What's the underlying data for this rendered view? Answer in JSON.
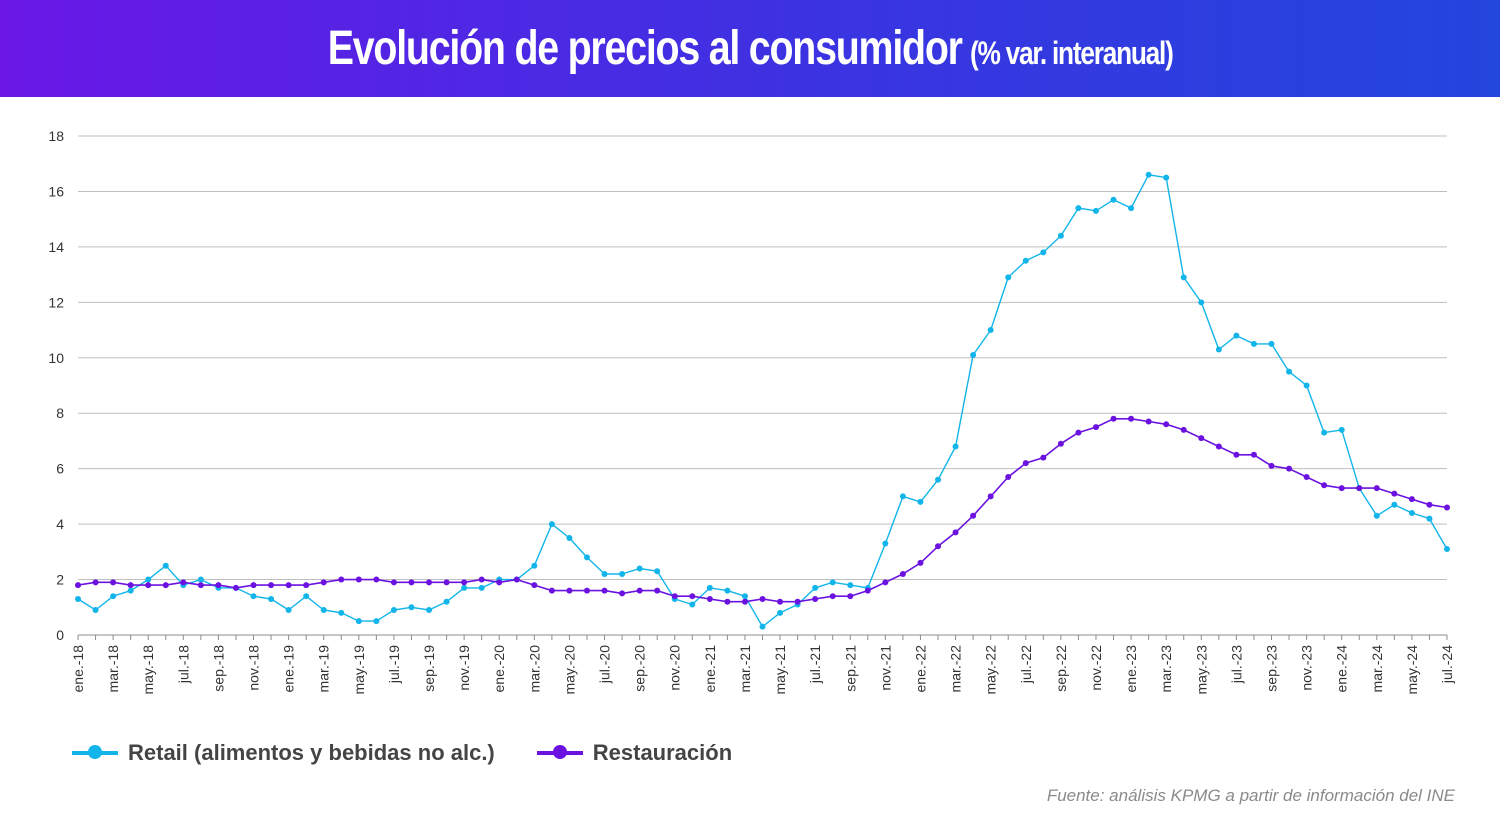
{
  "header": {
    "title": "Evolución de precios al consumidor",
    "subtitle": "(% var. interanual)"
  },
  "source": "Fuente: análisis KPMG a partir de información del INE",
  "colors": {
    "retail": "#12b5ea",
    "restauracion": "#6b12e0",
    "grid": "#bfbfbf"
  },
  "chart_data": {
    "type": "line",
    "title": "Evolución de precios al consumidor (% var. interanual)",
    "ylim": [
      0,
      18
    ],
    "yticks": [
      0,
      2,
      4,
      6,
      8,
      10,
      12,
      14,
      16,
      18
    ],
    "grid": true,
    "legend_position": "bottom-left",
    "x_tick_labels": [
      "ene.-18",
      "mar.-18",
      "may.-18",
      "jul.-18",
      "sep.-18",
      "nov.-18",
      "ene.-19",
      "mar.-19",
      "may.-19",
      "jul.-19",
      "sep.-19",
      "nov.-19",
      "ene.-20",
      "mar.-20",
      "may.-20",
      "jul.-20",
      "sep.-20",
      "nov.-20",
      "ene.-21",
      "mar.-21",
      "may.-21",
      "jul.-21",
      "sep.-21",
      "nov.-21",
      "ene.-22",
      "mar.-22",
      "may.-22",
      "jul.-22",
      "sep.-22",
      "nov.-22",
      "ene.-23",
      "mar.-23",
      "may.-23",
      "jul.-23",
      "sep.-23",
      "nov.-23",
      "ene.-24",
      "mar.-24",
      "may.-24",
      "jul.-24"
    ],
    "x": [
      "2018-01",
      "2018-02",
      "2018-03",
      "2018-04",
      "2018-05",
      "2018-06",
      "2018-07",
      "2018-08",
      "2018-09",
      "2018-10",
      "2018-11",
      "2018-12",
      "2019-01",
      "2019-02",
      "2019-03",
      "2019-04",
      "2019-05",
      "2019-06",
      "2019-07",
      "2019-08",
      "2019-09",
      "2019-10",
      "2019-11",
      "2019-12",
      "2020-01",
      "2020-02",
      "2020-03",
      "2020-04",
      "2020-05",
      "2020-06",
      "2020-07",
      "2020-08",
      "2020-09",
      "2020-10",
      "2020-11",
      "2020-12",
      "2021-01",
      "2021-02",
      "2021-03",
      "2021-04",
      "2021-05",
      "2021-06",
      "2021-07",
      "2021-08",
      "2021-09",
      "2021-10",
      "2021-11",
      "2021-12",
      "2022-01",
      "2022-02",
      "2022-03",
      "2022-04",
      "2022-05",
      "2022-06",
      "2022-07",
      "2022-08",
      "2022-09",
      "2022-10",
      "2022-11",
      "2022-12",
      "2023-01",
      "2023-02",
      "2023-03",
      "2023-04",
      "2023-05",
      "2023-06",
      "2023-07",
      "2023-08",
      "2023-09",
      "2023-10",
      "2023-11",
      "2023-12",
      "2024-01",
      "2024-02",
      "2024-03",
      "2024-04",
      "2024-05",
      "2024-06",
      "2024-07"
    ],
    "series": [
      {
        "name": "Retail (alimentos y bebidas no alc.)",
        "color": "#12b5ea",
        "values": [
          1.3,
          0.9,
          1.4,
          1.6,
          2.0,
          2.5,
          1.8,
          2.0,
          1.7,
          1.7,
          1.4,
          1.3,
          0.9,
          1.4,
          0.9,
          0.8,
          0.5,
          0.5,
          0.9,
          1.0,
          0.9,
          1.2,
          1.7,
          1.7,
          2.0,
          2.0,
          2.5,
          4.0,
          3.5,
          2.8,
          2.2,
          2.2,
          2.4,
          2.3,
          1.3,
          1.1,
          1.7,
          1.6,
          1.4,
          0.3,
          0.8,
          1.1,
          1.7,
          1.9,
          1.8,
          1.7,
          3.3,
          5.0,
          4.8,
          5.6,
          6.8,
          10.1,
          11.0,
          12.9,
          13.5,
          13.8,
          14.4,
          15.4,
          15.3,
          15.7,
          15.4,
          16.6,
          16.5,
          12.9,
          12.0,
          10.3,
          10.8,
          10.5,
          10.5,
          9.5,
          9.0,
          7.3,
          7.4,
          5.3,
          4.3,
          4.7,
          4.4,
          4.2,
          3.1
        ]
      },
      {
        "name": "Restauración",
        "color": "#6b12e0",
        "values": [
          1.8,
          1.9,
          1.9,
          1.8,
          1.8,
          1.8,
          1.9,
          1.8,
          1.8,
          1.7,
          1.8,
          1.8,
          1.8,
          1.8,
          1.9,
          2.0,
          2.0,
          2.0,
          1.9,
          1.9,
          1.9,
          1.9,
          1.9,
          2.0,
          1.9,
          2.0,
          1.8,
          1.6,
          1.6,
          1.6,
          1.6,
          1.5,
          1.6,
          1.6,
          1.4,
          1.4,
          1.3,
          1.2,
          1.2,
          1.3,
          1.2,
          1.2,
          1.3,
          1.4,
          1.4,
          1.6,
          1.9,
          2.2,
          2.6,
          3.2,
          3.7,
          4.3,
          5.0,
          5.7,
          6.2,
          6.4,
          6.9,
          7.3,
          7.5,
          7.8,
          7.8,
          7.7,
          7.6,
          7.4,
          7.1,
          6.8,
          6.5,
          6.5,
          6.1,
          6.0,
          5.7,
          5.4,
          5.3,
          5.3,
          5.3,
          5.1,
          4.9,
          4.7,
          4.6
        ]
      }
    ]
  }
}
